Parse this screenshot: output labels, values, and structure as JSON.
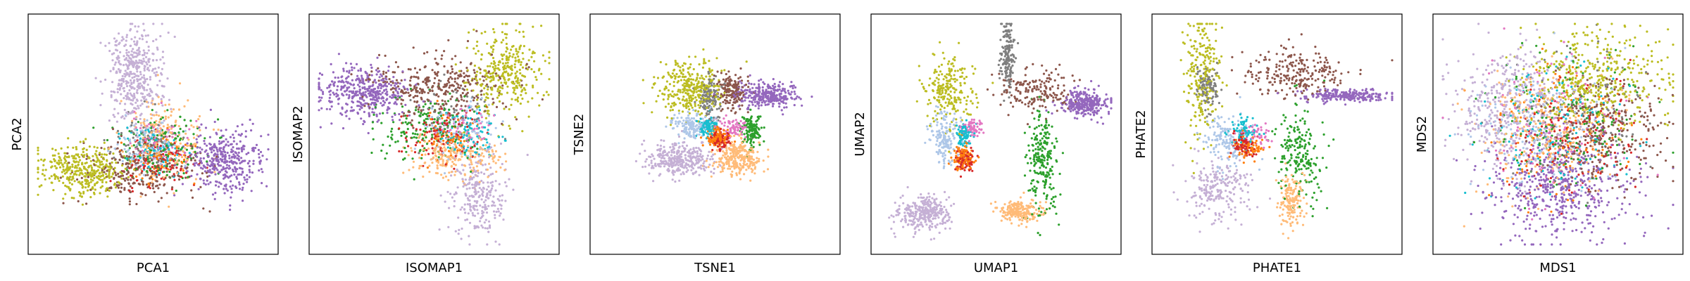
{
  "figure": {
    "background": "#ffffff",
    "frame_color": "#000000"
  },
  "chart_data": [
    {
      "type": "scatter",
      "title": "",
      "xlabel": "PCA1",
      "ylabel": "PCA2",
      "xticks": [],
      "yticks": [],
      "xlim": [
        -1,
        1
      ],
      "ylim": [
        -1,
        1
      ],
      "grid": false,
      "legend": "none",
      "groups": [
        {
          "color": "#c5b0d5",
          "center": [
            -0.15,
            0.55
          ],
          "spread": [
            0.12,
            0.22
          ],
          "count": 420
        },
        {
          "color": "#bcbd22",
          "center": [
            -0.62,
            -0.32
          ],
          "spread": [
            0.18,
            0.12
          ],
          "count": 380
        },
        {
          "color": "#9467bd",
          "center": [
            0.62,
            -0.25
          ],
          "spread": [
            0.16,
            0.14
          ],
          "count": 380
        },
        {
          "color": "#8c564b",
          "center": [
            -0.1,
            -0.32
          ],
          "spread": [
            0.28,
            0.14
          ],
          "count": 260
        },
        {
          "color": "#ffbb78",
          "center": [
            0.1,
            -0.05
          ],
          "spread": [
            0.18,
            0.18
          ],
          "count": 200
        },
        {
          "color": "#2ca02c",
          "center": [
            0.1,
            -0.12
          ],
          "spread": [
            0.22,
            0.14
          ],
          "count": 150
        },
        {
          "color": "#aec7e8",
          "center": [
            -0.05,
            -0.1
          ],
          "spread": [
            0.14,
            0.12
          ],
          "count": 110
        },
        {
          "color": "#17becf",
          "center": [
            0.0,
            -0.15
          ],
          "spread": [
            0.14,
            0.1
          ],
          "count": 90
        },
        {
          "color": "#d62728",
          "center": [
            0.0,
            -0.28
          ],
          "spread": [
            0.16,
            0.1
          ],
          "count": 90
        },
        {
          "color": "#e377c2",
          "center": [
            0.05,
            -0.08
          ],
          "spread": [
            0.12,
            0.12
          ],
          "count": 70
        },
        {
          "color": "#7f7f7f",
          "center": [
            -0.1,
            -0.05
          ],
          "spread": [
            0.12,
            0.12
          ],
          "count": 60
        },
        {
          "color": "#ff7f0e",
          "center": [
            0.05,
            -0.2
          ],
          "spread": [
            0.12,
            0.1
          ],
          "count": 60
        }
      ]
    },
    {
      "type": "scatter",
      "title": "",
      "xlabel": "ISOMAP1",
      "ylabel": "ISOMAP2",
      "xticks": [],
      "yticks": [],
      "xlim": [
        -1,
        1
      ],
      "ylim": [
        -1,
        1
      ],
      "grid": false,
      "legend": "none",
      "groups": [
        {
          "color": "#9467bd",
          "center": [
            -0.62,
            0.38
          ],
          "spread": [
            0.2,
            0.12
          ],
          "count": 420
        },
        {
          "color": "#8c564b",
          "center": [
            0.05,
            0.45
          ],
          "spread": [
            0.32,
            0.14
          ],
          "count": 330
        },
        {
          "color": "#bcbd22",
          "center": [
            0.6,
            0.55
          ],
          "spread": [
            0.16,
            0.2
          ],
          "count": 330
        },
        {
          "color": "#ffbb78",
          "center": [
            0.2,
            -0.2
          ],
          "spread": [
            0.2,
            0.1
          ],
          "count": 220
        },
        {
          "color": "#c5b0d5",
          "center": [
            0.38,
            -0.55
          ],
          "spread": [
            0.12,
            0.2
          ],
          "count": 260
        },
        {
          "color": "#2ca02c",
          "center": [
            -0.1,
            0.05
          ],
          "spread": [
            0.22,
            0.16
          ],
          "count": 170
        },
        {
          "color": "#d62728",
          "center": [
            0.05,
            0.0
          ],
          "spread": [
            0.16,
            0.12
          ],
          "count": 110
        },
        {
          "color": "#17becf",
          "center": [
            0.3,
            0.0
          ],
          "spread": [
            0.14,
            0.12
          ],
          "count": 90
        },
        {
          "color": "#aec7e8",
          "center": [
            0.2,
            0.05
          ],
          "spread": [
            0.18,
            0.14
          ],
          "count": 90
        },
        {
          "color": "#7f7f7f",
          "center": [
            0.15,
            0.2
          ],
          "spread": [
            0.18,
            0.14
          ],
          "count": 70
        },
        {
          "color": "#ff7f0e",
          "center": [
            0.1,
            -0.05
          ],
          "spread": [
            0.12,
            0.1
          ],
          "count": 60
        },
        {
          "color": "#e377c2",
          "center": [
            0.25,
            0.1
          ],
          "spread": [
            0.12,
            0.1
          ],
          "count": 50
        }
      ]
    },
    {
      "type": "scatter",
      "title": "",
      "xlabel": "TSNE1",
      "ylabel": "TSNE2",
      "xticks": [],
      "yticks": [],
      "xlim": [
        -1,
        1
      ],
      "ylim": [
        -1,
        1
      ],
      "grid": false,
      "legend": "none",
      "groups": [
        {
          "color": "#bcbd22",
          "center": [
            -0.22,
            0.42
          ],
          "spread": [
            0.14,
            0.12
          ],
          "count": 330
        },
        {
          "color": "#9467bd",
          "center": [
            0.45,
            0.35
          ],
          "spread": [
            0.13,
            0.06
          ],
          "count": 310
        },
        {
          "color": "#8c564b",
          "center": [
            0.15,
            0.4
          ],
          "spread": [
            0.07,
            0.08
          ],
          "count": 160
        },
        {
          "color": "#7f7f7f",
          "center": [
            -0.05,
            0.34
          ],
          "spread": [
            0.05,
            0.1
          ],
          "count": 130
        },
        {
          "color": "#c5b0d5",
          "center": [
            -0.3,
            -0.22
          ],
          "spread": [
            0.14,
            0.08
          ],
          "count": 330
        },
        {
          "color": "#ffbb78",
          "center": [
            0.2,
            -0.2
          ],
          "spread": [
            0.1,
            0.08
          ],
          "count": 280
        },
        {
          "color": "#aec7e8",
          "center": [
            -0.22,
            0.08
          ],
          "spread": [
            0.08,
            0.06
          ],
          "count": 150
        },
        {
          "color": "#17becf",
          "center": [
            -0.07,
            0.06
          ],
          "spread": [
            0.04,
            0.04
          ],
          "count": 100
        },
        {
          "color": "#2ca02c",
          "center": [
            0.32,
            0.04
          ],
          "spread": [
            0.04,
            0.07
          ],
          "count": 130
        },
        {
          "color": "#ff7f0e",
          "center": [
            0.02,
            -0.03
          ],
          "spread": [
            0.05,
            0.04
          ],
          "count": 110
        },
        {
          "color": "#d62728",
          "center": [
            0.05,
            -0.05
          ],
          "spread": [
            0.04,
            0.04
          ],
          "count": 90
        },
        {
          "color": "#e377c2",
          "center": [
            0.18,
            0.05
          ],
          "spread": [
            0.06,
            0.05
          ],
          "count": 70
        }
      ]
    },
    {
      "type": "scatter",
      "title": "",
      "xlabel": "UMAP1",
      "ylabel": "UMAP2",
      "xticks": [],
      "yticks": [],
      "xlim": [
        -1,
        1
      ],
      "ylim": [
        -1,
        1
      ],
      "grid": false,
      "legend": "none",
      "groups": [
        {
          "color": "#9467bd",
          "center": [
            0.78,
            0.28
          ],
          "spread": [
            0.1,
            0.06
          ],
          "count": 300
        },
        {
          "color": "#7f7f7f",
          "center": [
            0.1,
            0.72
          ],
          "spread": [
            0.03,
            0.16
          ],
          "count": 170
        },
        {
          "color": "#8c564b",
          "center": [
            0.38,
            0.38
          ],
          "spread": [
            0.16,
            0.1
          ],
          "count": 170
        },
        {
          "color": "#bcbd22",
          "center": [
            -0.42,
            0.38
          ],
          "spread": [
            0.1,
            0.16
          ],
          "count": 230
        },
        {
          "color": "#2ca02c",
          "center": [
            0.4,
            -0.22
          ],
          "spread": [
            0.06,
            0.24
          ],
          "count": 230
        },
        {
          "color": "#ffbb78",
          "center": [
            0.2,
            -0.7
          ],
          "spread": [
            0.1,
            0.05
          ],
          "count": 200
        },
        {
          "color": "#c5b0d5",
          "center": [
            -0.62,
            -0.72
          ],
          "spread": [
            0.12,
            0.08
          ],
          "count": 300
        },
        {
          "color": "#aec7e8",
          "center": [
            -0.45,
            -0.05
          ],
          "spread": [
            0.06,
            0.12
          ],
          "count": 160
        },
        {
          "color": "#17becf",
          "center": [
            -0.28,
            0.0
          ],
          "spread": [
            0.04,
            0.05
          ],
          "count": 90
        },
        {
          "color": "#ff7f0e",
          "center": [
            -0.28,
            -0.2
          ],
          "spread": [
            0.05,
            0.06
          ],
          "count": 110
        },
        {
          "color": "#d62728",
          "center": [
            -0.27,
            -0.24
          ],
          "spread": [
            0.04,
            0.05
          ],
          "count": 90
        },
        {
          "color": "#e377c2",
          "center": [
            -0.2,
            0.05
          ],
          "spread": [
            0.05,
            0.05
          ],
          "count": 60
        }
      ]
    },
    {
      "type": "scatter",
      "title": "",
      "xlabel": "PHATE1",
      "ylabel": "PHATE2",
      "xticks": [],
      "yticks": [],
      "xlim": [
        -1,
        1
      ],
      "ylim": [
        -1,
        1
      ],
      "grid": false,
      "legend": "none",
      "groups": [
        {
          "color": "#9467bd",
          "center": [
            0.6,
            0.35
          ],
          "spread": [
            0.18,
            0.03
          ],
          "count": 220
        },
        {
          "color": "#8c564b",
          "center": [
            0.15,
            0.55
          ],
          "spread": [
            0.22,
            0.1
          ],
          "count": 230
        },
        {
          "color": "#bcbd22",
          "center": [
            -0.65,
            0.55
          ],
          "spread": [
            0.07,
            0.3
          ],
          "count": 240
        },
        {
          "color": "#7f7f7f",
          "center": [
            -0.6,
            0.4
          ],
          "spread": [
            0.05,
            0.1
          ],
          "count": 110
        },
        {
          "color": "#2ca02c",
          "center": [
            0.2,
            -0.2
          ],
          "spread": [
            0.1,
            0.22
          ],
          "count": 200
        },
        {
          "color": "#ffbb78",
          "center": [
            0.12,
            -0.6
          ],
          "spread": [
            0.06,
            0.12
          ],
          "count": 150
        },
        {
          "color": "#c5b0d5",
          "center": [
            -0.5,
            -0.5
          ],
          "spread": [
            0.14,
            0.14
          ],
          "count": 220
        },
        {
          "color": "#aec7e8",
          "center": [
            -0.45,
            -0.05
          ],
          "spread": [
            0.1,
            0.14
          ],
          "count": 140
        },
        {
          "color": "#17becf",
          "center": [
            -0.3,
            0.02
          ],
          "spread": [
            0.06,
            0.06
          ],
          "count": 80
        },
        {
          "color": "#d62728",
          "center": [
            -0.3,
            -0.1
          ],
          "spread": [
            0.05,
            0.05
          ],
          "count": 80
        },
        {
          "color": "#ff7f0e",
          "center": [
            -0.25,
            -0.12
          ],
          "spread": [
            0.06,
            0.06
          ],
          "count": 70
        },
        {
          "color": "#e377c2",
          "center": [
            -0.2,
            0.0
          ],
          "spread": [
            0.06,
            0.06
          ],
          "count": 50
        }
      ]
    },
    {
      "type": "scatter",
      "title": "",
      "xlabel": "MDS1",
      "ylabel": "MDS2",
      "xticks": [],
      "yticks": [],
      "xlim": [
        -1,
        1
      ],
      "ylim": [
        -1,
        1
      ],
      "grid": false,
      "legend": "none",
      "groups": [
        {
          "color": "#9467bd",
          "center": [
            0.0,
            -0.5
          ],
          "spread": [
            0.32,
            0.22
          ],
          "count": 520
        },
        {
          "color": "#c5b0d5",
          "center": [
            -0.45,
            0.25
          ],
          "spread": [
            0.24,
            0.28
          ],
          "count": 440
        },
        {
          "color": "#bcbd22",
          "center": [
            0.3,
            0.5
          ],
          "spread": [
            0.3,
            0.22
          ],
          "count": 440
        },
        {
          "color": "#8c564b",
          "center": [
            0.4,
            0.05
          ],
          "spread": [
            0.26,
            0.24
          ],
          "count": 300
        },
        {
          "color": "#ffbb78",
          "center": [
            -0.1,
            0.0
          ],
          "spread": [
            0.3,
            0.26
          ],
          "count": 250
        },
        {
          "color": "#2ca02c",
          "center": [
            0.1,
            0.1
          ],
          "spread": [
            0.32,
            0.3
          ],
          "count": 170
        },
        {
          "color": "#aec7e8",
          "center": [
            -0.2,
            0.1
          ],
          "spread": [
            0.3,
            0.3
          ],
          "count": 150
        },
        {
          "color": "#17becf",
          "center": [
            0.0,
            0.05
          ],
          "spread": [
            0.3,
            0.3
          ],
          "count": 130
        },
        {
          "color": "#d62728",
          "center": [
            0.1,
            0.0
          ],
          "spread": [
            0.3,
            0.3
          ],
          "count": 130
        },
        {
          "color": "#ff7f0e",
          "center": [
            0.0,
            0.0
          ],
          "spread": [
            0.3,
            0.3
          ],
          "count": 130
        },
        {
          "color": "#e377c2",
          "center": [
            0.0,
            0.1
          ],
          "spread": [
            0.3,
            0.3
          ],
          "count": 110
        },
        {
          "color": "#7f7f7f",
          "center": [
            0.2,
            0.2
          ],
          "spread": [
            0.3,
            0.3
          ],
          "count": 110
        }
      ]
    }
  ]
}
